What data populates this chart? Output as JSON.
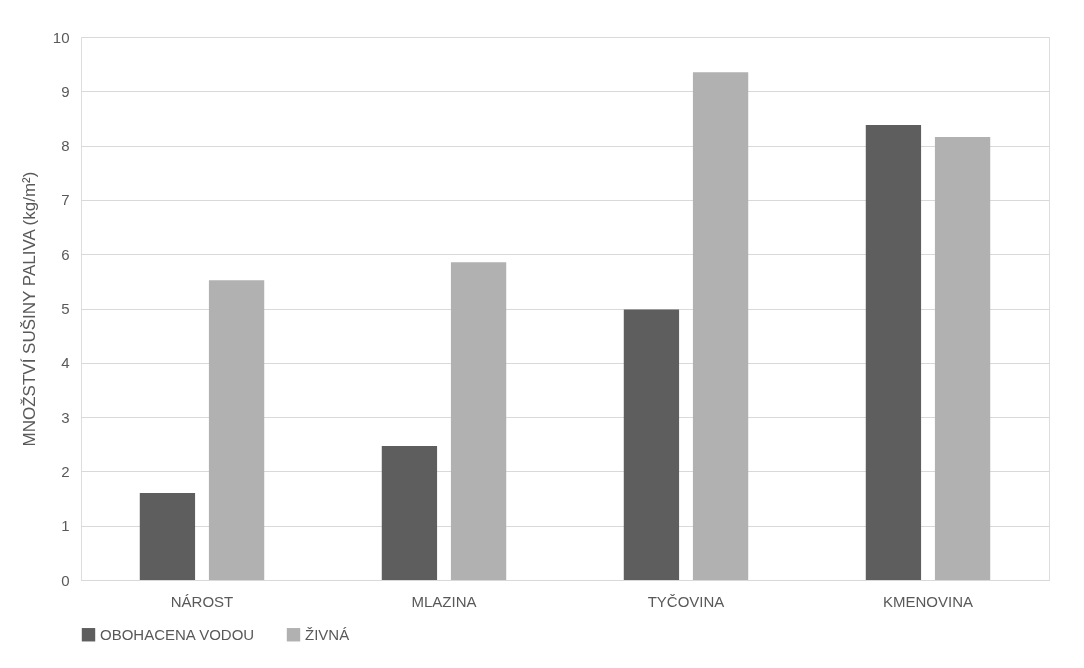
{
  "chart_data": {
    "type": "bar",
    "ylabel": "MNOŽSTVÍ SUŠINY PALIVA (kg/m²)",
    "categories": [
      "NÁROST",
      "MLAZINA",
      "TYČOVINA",
      "KMENOVINA"
    ],
    "series": [
      {
        "name": "OBOHACENA VODOU",
        "color": "#5e5e5e",
        "values": [
          1.6,
          2.47,
          4.98,
          8.38
        ]
      },
      {
        "name": "ŽIVNÁ",
        "color": "#b1b1b1",
        "values": [
          5.52,
          5.85,
          9.35,
          8.16
        ]
      }
    ],
    "ylim": [
      0,
      10
    ],
    "yticks": [
      0,
      1,
      2,
      3,
      4,
      5,
      6,
      7,
      8,
      9,
      10
    ],
    "grid": "y",
    "legend": "bottom"
  }
}
